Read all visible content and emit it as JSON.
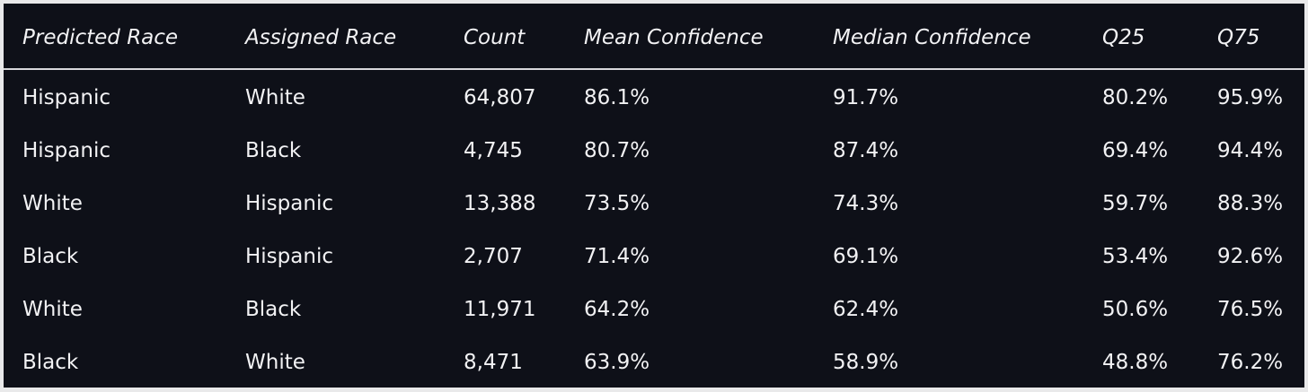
{
  "table": {
    "header": [
      "Predicted Race",
      "Assigned Race",
      "Count",
      "Mean Confidence",
      "Median Confidence",
      "Q25",
      "Q75"
    ],
    "rows": [
      [
        "Hispanic",
        "White",
        "64,807",
        "86.1%",
        "91.7%",
        "80.2%",
        "95.9%"
      ],
      [
        "Hispanic",
        "Black",
        "4,745",
        "80.7%",
        "87.4%",
        "69.4%",
        "94.4%"
      ],
      [
        "White",
        "Hispanic",
        "13,388",
        "73.5%",
        "74.3%",
        "59.7%",
        "88.3%"
      ],
      [
        "Black",
        "Hispanic",
        "2,707",
        "71.4%",
        "69.1%",
        "53.4%",
        "92.6%"
      ],
      [
        "White",
        "Black",
        "11,971",
        "64.2%",
        "62.4%",
        "50.6%",
        "76.5%"
      ],
      [
        "Black",
        "White",
        "8,471",
        "63.9%",
        "58.9%",
        "48.8%",
        "76.2%"
      ]
    ]
  }
}
